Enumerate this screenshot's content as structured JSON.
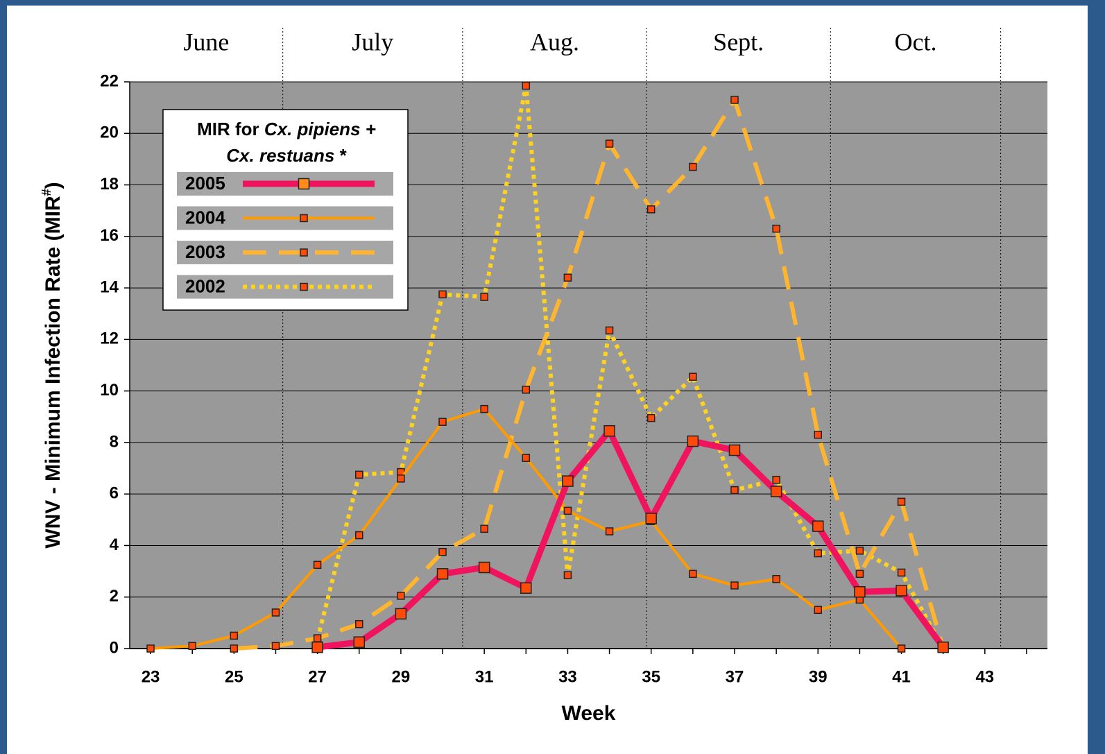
{
  "chart_data": {
    "type": "line",
    "x_label": "Week",
    "y_label": [
      "WNV -  Minimum Infection Rate (MIR",
      "#",
      ")"
    ],
    "legend_title": [
      [
        "MIR for ",
        "Cx. pipiens +"
      ],
      [
        "Cx. restuans",
        " *"
      ]
    ],
    "legend_position": "upper left",
    "months": [
      "June",
      "July",
      "Aug.",
      "Sept.",
      "Oct."
    ],
    "month_bounds": [
      26.17,
      30.48,
      34.89,
      39.3,
      43.38
    ],
    "xlim": [
      22.5,
      44.5
    ],
    "xticks": [
      23,
      25,
      27,
      29,
      31,
      33,
      35,
      37,
      39,
      41,
      43
    ],
    "minor_xticks": [
      23,
      24,
      25,
      26,
      27,
      28,
      29,
      30,
      31,
      32,
      33,
      34,
      35,
      36,
      37,
      38,
      39,
      40,
      41,
      42,
      43,
      44
    ],
    "ylim": [
      0,
      22
    ],
    "yticks": [
      0,
      2,
      4,
      6,
      8,
      10,
      12,
      14,
      16,
      18,
      20,
      22
    ],
    "grid": true,
    "series": [
      {
        "name": "2005",
        "color": "#f0145f",
        "line_style": "solid",
        "width": 9,
        "marker_size": 15,
        "x": [
          27,
          28,
          29,
          30,
          31,
          32,
          33,
          34,
          35,
          36,
          37,
          38,
          39,
          40,
          41,
          42
        ],
        "values": [
          0.05,
          0.25,
          1.35,
          2.9,
          3.15,
          2.35,
          6.5,
          8.45,
          5.05,
          8.05,
          7.7,
          6.1,
          4.75,
          2.2,
          2.25,
          0.05
        ]
      },
      {
        "name": "2004",
        "color": "#ff9a00",
        "line_style": "solid",
        "width": 4,
        "marker_size": 10,
        "x": [
          23,
          24,
          25,
          26,
          27,
          28,
          29,
          30,
          31,
          32,
          33,
          34,
          35,
          36,
          37,
          38,
          39,
          40,
          41
        ],
        "values": [
          0,
          0.1,
          0.5,
          1.4,
          3.25,
          4.4,
          6.6,
          8.8,
          9.3,
          7.4,
          5.35,
          4.55,
          4.95,
          2.9,
          2.45,
          2.7,
          1.5,
          1.9,
          0
        ]
      },
      {
        "name": "2003",
        "color": "#ffb52e",
        "line_style": "dashed",
        "width": 6,
        "marker_size": 10,
        "x": [
          25,
          26,
          27,
          28,
          29,
          30,
          31,
          32,
          33,
          34,
          35,
          36,
          37,
          38,
          39,
          40,
          41,
          42
        ],
        "values": [
          0,
          0.1,
          0.4,
          0.95,
          2.05,
          3.75,
          4.65,
          10.05,
          14.4,
          19.6,
          17.05,
          18.7,
          21.3,
          16.3,
          8.3,
          2.9,
          5.7,
          0
        ]
      },
      {
        "name": "2002",
        "color": "#ffd21f",
        "line_style": "dotted",
        "width": 6,
        "marker_size": 10,
        "x": [
          27,
          28,
          29,
          30,
          31,
          32,
          33,
          34,
          35,
          36,
          37,
          38,
          39,
          40,
          41,
          42
        ],
        "values": [
          0.35,
          6.75,
          6.85,
          13.75,
          13.65,
          21.85,
          2.85,
          12.35,
          8.95,
          10.55,
          6.15,
          6.55,
          3.7,
          3.8,
          2.95,
          0
        ]
      }
    ]
  }
}
